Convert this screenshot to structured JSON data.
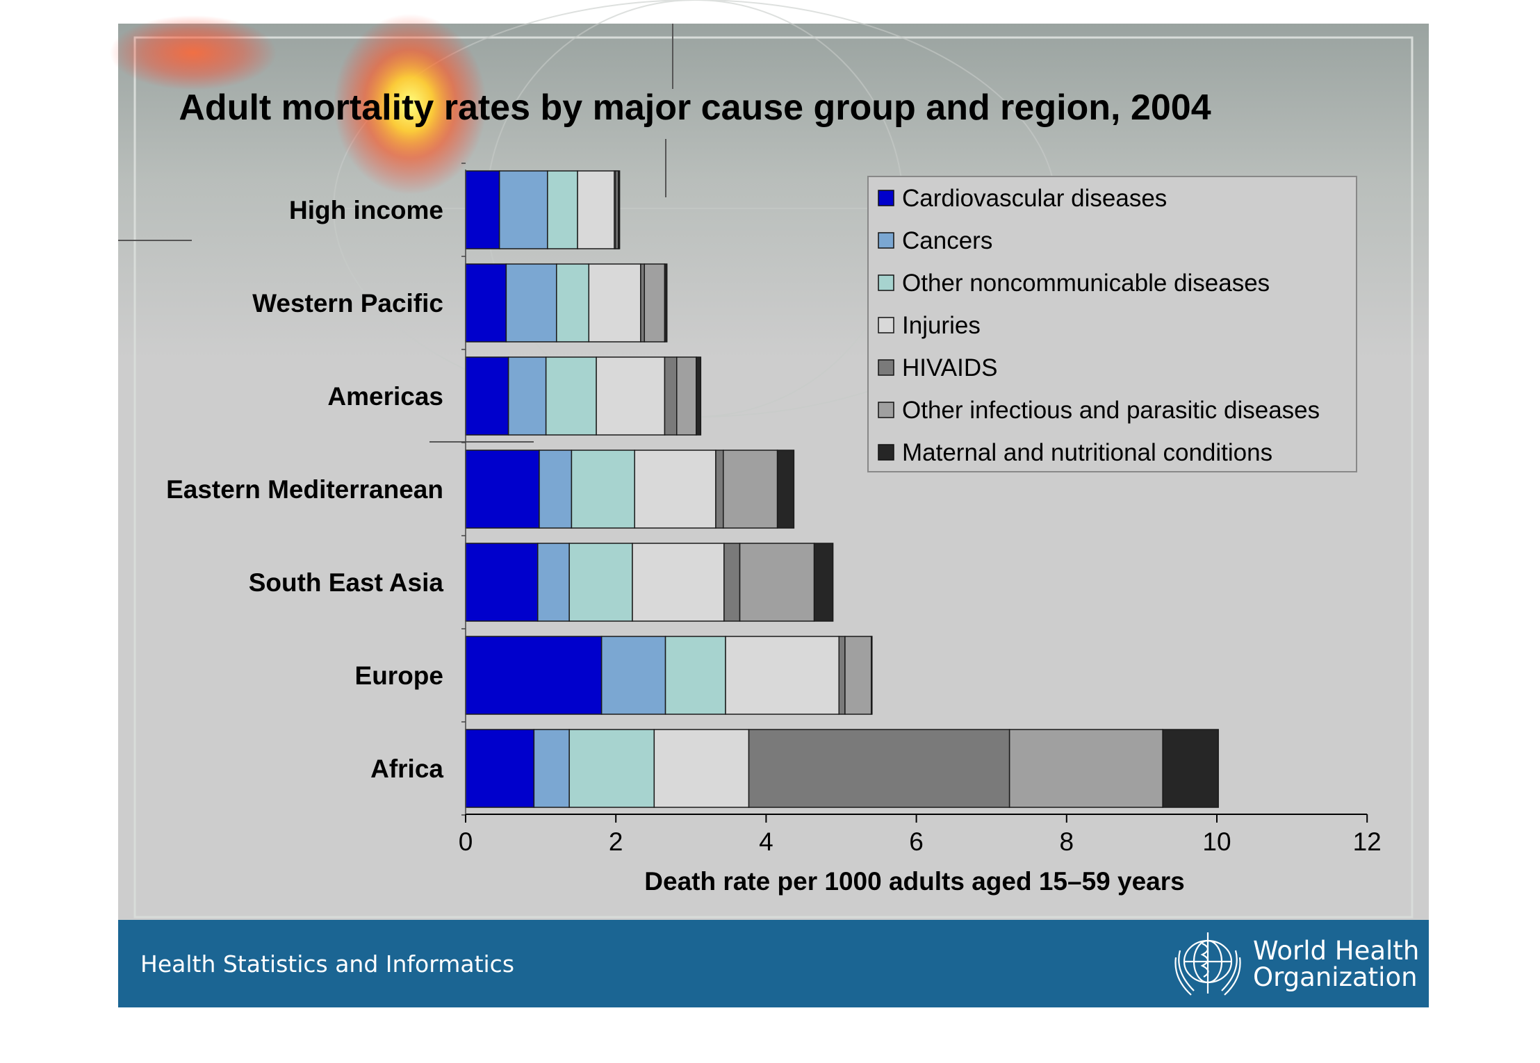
{
  "footer": {
    "left_text": "Health Statistics and Informatics",
    "logo_text": "World Health\nOrganization"
  },
  "colors": {
    "Cardiovascular diseases": "#0000cc",
    "Cancers": "#7ba7d2",
    "Other noncommunicable diseases": "#a7d3cf",
    "Injuries": "#d9d9d9",
    "HIVAIDS": "#7a7a7a",
    "Other infectious and parasitic diseases": "#a0a0a0",
    "Maternal and nutritional conditions": "#262626",
    "footer": "#1b6593"
  },
  "chart_data": {
    "type": "bar",
    "orientation": "horizontal",
    "stacked": true,
    "title": "Adult mortality rates by major cause group and region, 2004",
    "xlabel": "Death rate per 1000 adults aged 15–59 years",
    "ylabel": "",
    "xlim": [
      0,
      12
    ],
    "xticks": [
      "0",
      "2",
      "4",
      "6",
      "8",
      "10",
      "12"
    ],
    "grid": false,
    "legend_position": "top-right",
    "categories": [
      "High income",
      "Western Pacific",
      "Americas",
      "Eastern Mediterranean",
      "South East Asia",
      "Europe",
      "Africa"
    ],
    "series": [
      {
        "name": "Cardiovascular diseases",
        "values": [
          0.45,
          0.54,
          0.57,
          0.98,
          0.96,
          1.81,
          0.91
        ]
      },
      {
        "name": "Cancers",
        "values": [
          0.64,
          0.67,
          0.5,
          0.43,
          0.42,
          0.85,
          0.47
        ]
      },
      {
        "name": "Other noncommunicable diseases",
        "values": [
          0.4,
          0.43,
          0.67,
          0.84,
          0.84,
          0.8,
          1.13
        ]
      },
      {
        "name": "Injuries",
        "values": [
          0.49,
          0.69,
          0.91,
          1.08,
          1.22,
          1.51,
          1.26
        ]
      },
      {
        "name": "HIVAIDS",
        "values": [
          0.02,
          0.05,
          0.16,
          0.1,
          0.21,
          0.08,
          3.47
        ]
      },
      {
        "name": "Other infectious and parasitic diseases",
        "values": [
          0.03,
          0.27,
          0.26,
          0.72,
          0.99,
          0.35,
          2.04
        ]
      },
      {
        "name": "Maternal and nutritional conditions",
        "values": [
          0.02,
          0.03,
          0.06,
          0.22,
          0.25,
          0.01,
          0.74
        ]
      }
    ]
  }
}
